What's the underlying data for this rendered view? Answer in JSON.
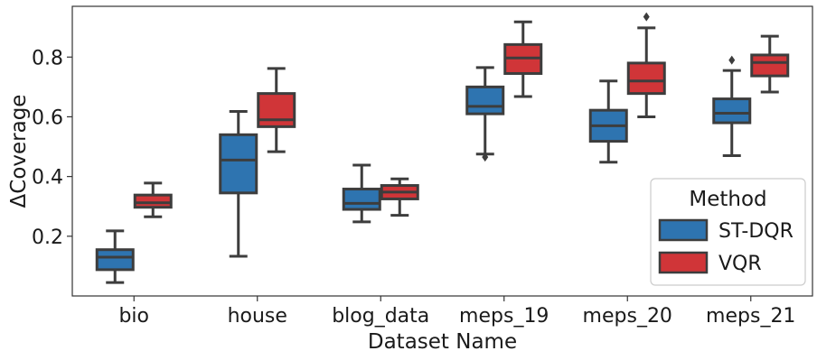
{
  "chart_data": {
    "type": "box",
    "title": "",
    "xlabel": "Dataset Name",
    "ylabel": "ΔCoverage",
    "ylim": [
      0.0,
      0.97
    ],
    "yticks": [
      "0.2",
      "0.4",
      "0.6",
      "0.8"
    ],
    "categories": [
      "bio",
      "house",
      "blog_data",
      "meps_19",
      "meps_20",
      "meps_21"
    ],
    "grid": false,
    "legend": {
      "title": "Method",
      "placement": "bottom-right",
      "entries": [
        "ST-DQR",
        "VQR"
      ]
    },
    "series": [
      {
        "name": "ST-DQR",
        "color": "#2e74b0",
        "boxes": [
          {
            "category": "bio",
            "whislo": 0.045,
            "q1": 0.088,
            "med": 0.13,
            "q3": 0.155,
            "whishi": 0.218,
            "fliers": []
          },
          {
            "category": "house",
            "whislo": 0.133,
            "q1": 0.345,
            "med": 0.455,
            "q3": 0.54,
            "whishi": 0.618,
            "fliers": []
          },
          {
            "category": "blog_data",
            "whislo": 0.248,
            "q1": 0.29,
            "med": 0.31,
            "q3": 0.358,
            "whishi": 0.438,
            "fliers": []
          },
          {
            "category": "meps_19",
            "whislo": 0.475,
            "q1": 0.61,
            "med": 0.635,
            "q3": 0.7,
            "whishi": 0.765,
            "fliers": [
              0.465
            ]
          },
          {
            "category": "meps_20",
            "whislo": 0.448,
            "q1": 0.518,
            "med": 0.57,
            "q3": 0.622,
            "whishi": 0.72,
            "fliers": []
          },
          {
            "category": "meps_21",
            "whislo": 0.47,
            "q1": 0.58,
            "med": 0.612,
            "q3": 0.66,
            "whishi": 0.755,
            "fliers": [
              0.79
            ]
          }
        ]
      },
      {
        "name": "VQR",
        "color": "#d03538",
        "boxes": [
          {
            "category": "bio",
            "whislo": 0.265,
            "q1": 0.297,
            "med": 0.312,
            "q3": 0.338,
            "whishi": 0.378,
            "fliers": []
          },
          {
            "category": "house",
            "whislo": 0.483,
            "q1": 0.567,
            "med": 0.59,
            "q3": 0.678,
            "whishi": 0.762,
            "fliers": []
          },
          {
            "category": "blog_data",
            "whislo": 0.27,
            "q1": 0.325,
            "med": 0.348,
            "q3": 0.37,
            "whishi": 0.392,
            "fliers": []
          },
          {
            "category": "meps_19",
            "whislo": 0.668,
            "q1": 0.745,
            "med": 0.797,
            "q3": 0.842,
            "whishi": 0.918,
            "fliers": []
          },
          {
            "category": "meps_20",
            "whislo": 0.6,
            "q1": 0.678,
            "med": 0.72,
            "q3": 0.78,
            "whishi": 0.898,
            "fliers": [
              0.935
            ]
          },
          {
            "category": "meps_21",
            "whislo": 0.683,
            "q1": 0.737,
            "med": 0.782,
            "q3": 0.807,
            "whishi": 0.87,
            "fliers": []
          }
        ]
      }
    ]
  }
}
